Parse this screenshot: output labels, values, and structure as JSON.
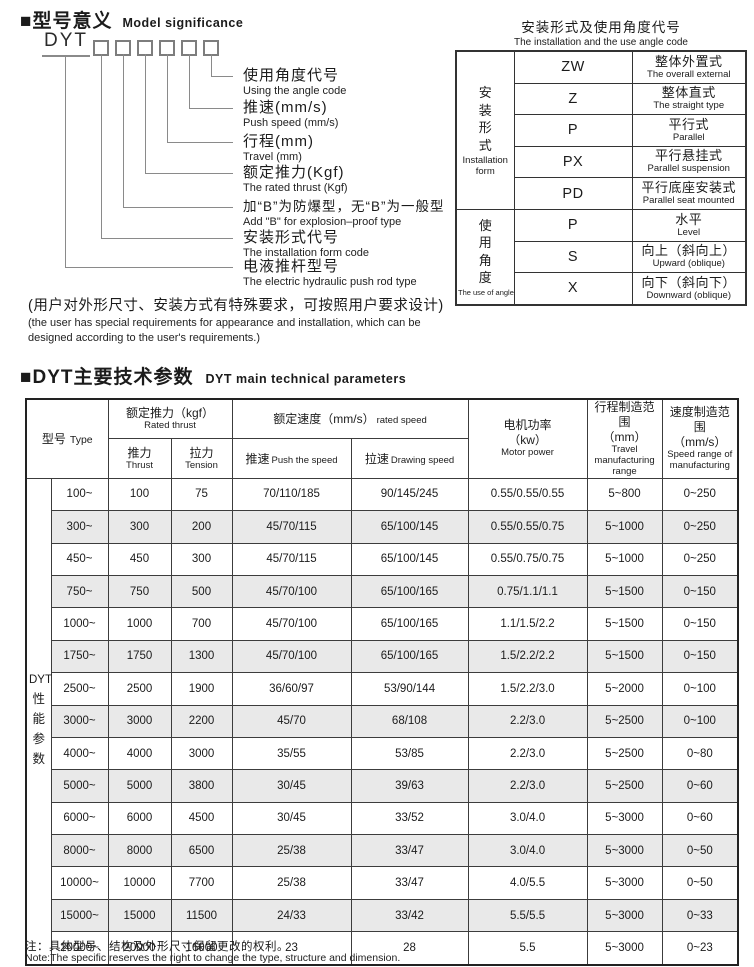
{
  "section1": {
    "title_zh": "■型号意义",
    "title_en": "Model  significance",
    "model_prefix": "DYT",
    "labels": [
      {
        "zh": "使用角度代号",
        "en": "Using the angle code"
      },
      {
        "zh": "推速(mm/s)",
        "en": "Push speed (mm/s)"
      },
      {
        "zh": "行程(mm)",
        "en": "Travel (mm)"
      },
      {
        "zh": "额定推力(Kgf)",
        "en": "The rated thrust (Kgf)"
      },
      {
        "zh": "加“B”为防爆型，无“B”为一般型",
        "en": "Add \"B\" for explosion–proof type"
      },
      {
        "zh": "安装形式代号",
        "en": "The installation form code"
      },
      {
        "zh": "电液推杆型号",
        "en": "The electric hydraulic push rod type"
      }
    ],
    "custom_note_zh": "(用户对外形尺寸、安装方式有特殊要求，可按照用户要求设计)",
    "custom_note_en": "(the user has special requirements for appearance and installation, which can be designed according to the user's requirements.)"
  },
  "code_table": {
    "title_zh": "安装形式及使用角度代号",
    "title_en": "The installation and the use angle code",
    "groups": [
      {
        "zh": "安装形式",
        "en": "Installation form",
        "rows": [
          {
            "code": "ZW",
            "zh": "整体外置式",
            "en": "The overall external"
          },
          {
            "code": "Z",
            "zh": "整体直式",
            "en": "The straight type"
          },
          {
            "code": "P",
            "zh": "平行式",
            "en": "Parallel"
          },
          {
            "code": "PX",
            "zh": "平行悬挂式",
            "en": "Parallel suspension"
          },
          {
            "code": "PD",
            "zh": "平行底座安装式",
            "en": "Parallel seat mounted"
          }
        ]
      },
      {
        "zh": "使用角度",
        "en": "The use of angle",
        "rows": [
          {
            "code": "P",
            "zh": "水平",
            "en": "Level"
          },
          {
            "code": "S",
            "zh": "向上（斜向上）",
            "en": "Upward (oblique)"
          },
          {
            "code": "X",
            "zh": "向下（斜向下）",
            "en": "Downward (oblique)"
          }
        ]
      }
    ]
  },
  "params": {
    "title_zh": "■DYT主要技术参数",
    "title_en": "DYT main technical parameters",
    "series": {
      "name": "DYT",
      "vertical": "性能参数"
    },
    "header": {
      "type_zh": "型号",
      "type_en": "Type",
      "rated_thrust_zh": "额定推力（kgf）",
      "rated_thrust_en": "Rated thrust",
      "thrust_zh": "推力",
      "thrust_en": "Thrust",
      "tension_zh": "拉力",
      "tension_en": "Tension",
      "rated_speed_zh": "额定速度（mm/s）",
      "rated_speed_en": "rated speed",
      "push_zh": "推速",
      "push_en": "Push the speed",
      "draw_zh": "拉速",
      "draw_en": "Drawing speed",
      "motor_zh": "电机功率",
      "motor_unit": "（kw）",
      "motor_en": "Motor power",
      "travel_zh": "行程制造范围",
      "travel_unit": "（mm）",
      "travel_en": "Travel manufacturing range",
      "speed_zh": "速度制造范围",
      "speed_unit": "（mm/s）",
      "speed_en": "Speed range of manufacturing"
    },
    "rows": [
      [
        "100~",
        "100",
        "75",
        "70/110/185",
        "90/145/245",
        "0.55/0.55/0.55",
        "5~800",
        "0~250"
      ],
      [
        "300~",
        "300",
        "200",
        "45/70/115",
        "65/100/145",
        "0.55/0.55/0.75",
        "5~1000",
        "0~250"
      ],
      [
        "450~",
        "450",
        "300",
        "45/70/115",
        "65/100/145",
        "0.55/0.75/0.75",
        "5~1000",
        "0~250"
      ],
      [
        "750~",
        "750",
        "500",
        "45/70/100",
        "65/100/165",
        "0.75/1.1/1.1",
        "5~1500",
        "0~150"
      ],
      [
        "1000~",
        "1000",
        "700",
        "45/70/100",
        "65/100/165",
        "1.1/1.5/2.2",
        "5~1500",
        "0~150"
      ],
      [
        "1750~",
        "1750",
        "1300",
        "45/70/100",
        "65/100/165",
        "1.5/2.2/2.2",
        "5~1500",
        "0~150"
      ],
      [
        "2500~",
        "2500",
        "1900",
        "36/60/97",
        "53/90/144",
        "1.5/2.2/3.0",
        "5~2000",
        "0~100"
      ],
      [
        "3000~",
        "3000",
        "2200",
        "45/70",
        "68/108",
        "2.2/3.0",
        "5~2500",
        "0~100"
      ],
      [
        "4000~",
        "4000",
        "3000",
        "35/55",
        "53/85",
        "2.2/3.0",
        "5~2500",
        "0~80"
      ],
      [
        "5000~",
        "5000",
        "3800",
        "30/45",
        "39/63",
        "2.2/3.0",
        "5~2500",
        "0~60"
      ],
      [
        "6000~",
        "6000",
        "4500",
        "30/45",
        "33/52",
        "3.0/4.0",
        "5~3000",
        "0~60"
      ],
      [
        "8000~",
        "8000",
        "6500",
        "25/38",
        "33/47",
        "3.0/4.0",
        "5~3000",
        "0~50"
      ],
      [
        "10000~",
        "10000",
        "7700",
        "25/38",
        "33/47",
        "4.0/5.5",
        "5~3000",
        "0~50"
      ],
      [
        "15000~",
        "15000",
        "11500",
        "24/33",
        "33/42",
        "5.5/5.5",
        "5~3000",
        "0~33"
      ],
      [
        "20000~",
        "20000",
        "16000",
        "23",
        "28",
        "5.5",
        "5~3000",
        "0~23"
      ]
    ],
    "footnote_zh": "注：具体型号、结构及外形尺寸保留更改的权利。",
    "footnote_en": "Note:The specific reserves the right to change the type, structure and dimension."
  },
  "colors": {
    "stripe": "#e9e9e9",
    "table_border": "#333333",
    "line": "#8a8a8a",
    "text": "#1b1b1b"
  }
}
